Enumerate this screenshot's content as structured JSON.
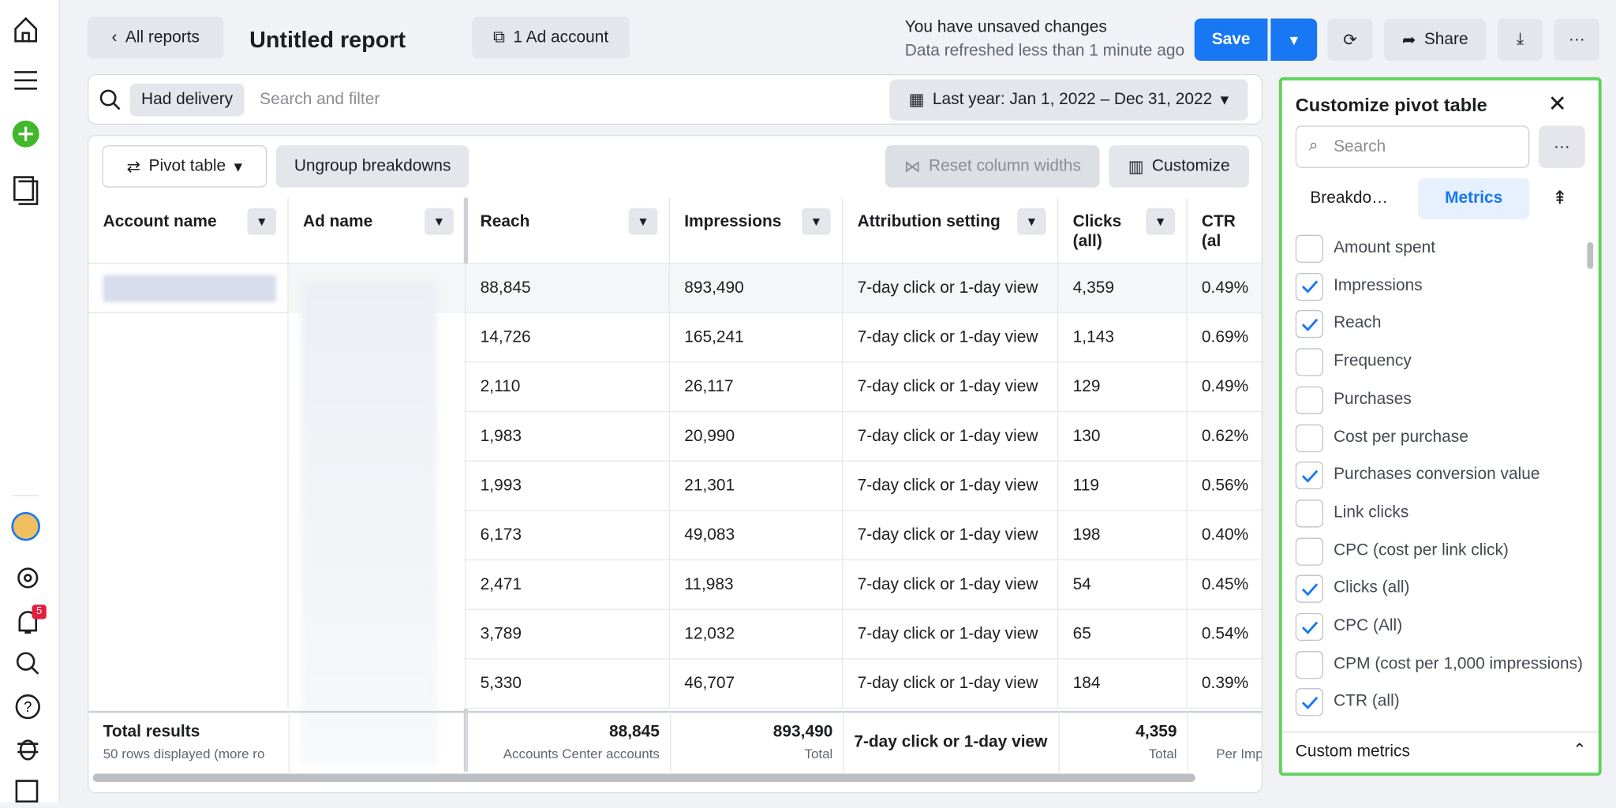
{
  "header": {
    "back": "All reports",
    "title": "Untitled report",
    "account": "1 Ad account",
    "status": "You have unsaved changes",
    "refreshed": "Data refreshed less than 1 minute ago",
    "save": "Save",
    "share": "Share"
  },
  "nav": {
    "badge": "5"
  },
  "filter": {
    "chip": "Had delivery",
    "placeholder": "Search and filter",
    "date": "Last year: Jan 1, 2022 – Dec 31, 2022"
  },
  "toolbar": {
    "view": "Pivot table",
    "ungroup": "Ungroup breakdowns",
    "reset": "Reset column widths",
    "customize": "Customize"
  },
  "table": {
    "columns": [
      "Account name",
      "Ad name",
      "Reach",
      "Impressions",
      "Attribution setting",
      "Clicks (all)",
      "CTR (al"
    ],
    "rows": [
      [
        "88,845",
        "893,490",
        "7-day click or 1-day view",
        "4,359",
        "0.49%"
      ],
      [
        "14,726",
        "165,241",
        "7-day click or 1-day view",
        "1,143",
        "0.69%"
      ],
      [
        "2,110",
        "26,117",
        "7-day click or 1-day view",
        "129",
        "0.49%"
      ],
      [
        "1,983",
        "20,990",
        "7-day click or 1-day view",
        "130",
        "0.62%"
      ],
      [
        "1,993",
        "21,301",
        "7-day click or 1-day view",
        "119",
        "0.56%"
      ],
      [
        "6,173",
        "49,083",
        "7-day click or 1-day view",
        "198",
        "0.40%"
      ],
      [
        "2,471",
        "11,983",
        "7-day click or 1-day view",
        "54",
        "0.45%"
      ],
      [
        "3,789",
        "12,032",
        "7-day click or 1-day view",
        "65",
        "0.54%"
      ],
      [
        "5,330",
        "46,707",
        "7-day click or 1-day view",
        "184",
        "0.39%"
      ]
    ],
    "totals": {
      "label": "Total results",
      "note": "50 rows displayed (more ro",
      "reach": "88,845",
      "reach_sub": "Accounts Center accounts",
      "impressions": "893,490",
      "impressions_sub": "Total",
      "attribution": "7-day click or 1-day view",
      "clicks": "4,359",
      "clicks_sub": "Total",
      "ctr_sub": "Per Imp"
    }
  },
  "panel": {
    "title": "Customize pivot table",
    "search": "Search",
    "tabs": [
      "Breakdo…",
      "Metrics"
    ],
    "items": [
      {
        "label": "Amount spent",
        "checked": false
      },
      {
        "label": "Impressions",
        "checked": true
      },
      {
        "label": "Reach",
        "checked": true
      },
      {
        "label": "Frequency",
        "checked": false
      },
      {
        "label": "Purchases",
        "checked": false
      },
      {
        "label": "Cost per purchase",
        "checked": false
      },
      {
        "label": "Purchases conversion value",
        "checked": true
      },
      {
        "label": "Link clicks",
        "checked": false
      },
      {
        "label": "CPC (cost per link click)",
        "checked": false
      },
      {
        "label": "Clicks (all)",
        "checked": true
      },
      {
        "label": "CPC (All)",
        "checked": true
      },
      {
        "label": "CPM (cost per 1,000 impressions)",
        "checked": false
      },
      {
        "label": "CTR (all)",
        "checked": true
      }
    ],
    "section": "Custom metrics"
  }
}
